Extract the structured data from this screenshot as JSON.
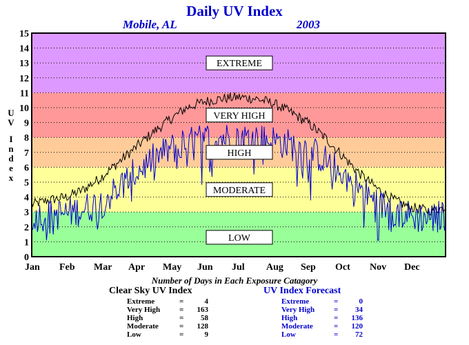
{
  "chart_data": {
    "type": "line",
    "title": "Daily UV Index",
    "subtitle_location": "Mobile, AL",
    "subtitle_year": "2003",
    "ylabel": "UV Index",
    "xlabel": "",
    "ylim": [
      0,
      15
    ],
    "yticks": [
      "0",
      "1",
      "2",
      "3",
      "4",
      "5",
      "6",
      "7",
      "8",
      "9",
      "10",
      "11",
      "12",
      "13",
      "14",
      "15"
    ],
    "xticks": [
      "Jan",
      "Feb",
      "Mar",
      "Apr",
      "May",
      "Jun",
      "Jul",
      "Aug",
      "Sep",
      "Oct",
      "Nov",
      "Dec"
    ],
    "grid": true,
    "bands": [
      {
        "label": "LOW",
        "from": 0,
        "to": 3,
        "color": "#99ff99"
      },
      {
        "label": "MODERATE",
        "from": 3,
        "to": 6,
        "color": "#ffff99"
      },
      {
        "label": "HIGH",
        "from": 6,
        "to": 8,
        "color": "#ffcc99"
      },
      {
        "label": "VERY HIGH",
        "from": 8,
        "to": 11,
        "color": "#ff9999"
      },
      {
        "label": "EXTREME",
        "from": 11,
        "to": 15,
        "color": "#dd99ff"
      }
    ],
    "series": [
      {
        "name": "Clear Sky UV Index",
        "color": "#000000",
        "x_month": [
          0,
          0.5,
          1,
          1.5,
          2,
          2.5,
          3,
          3.5,
          4,
          4.5,
          5,
          5.5,
          6,
          6.5,
          7,
          7.5,
          8,
          8.5,
          9,
          9.5,
          10,
          10.5,
          11,
          11.5,
          12
        ],
        "values": [
          3.5,
          3.8,
          4.0,
          4.5,
          5.3,
          6.3,
          7.3,
          8.3,
          9.2,
          10.0,
          10.4,
          10.6,
          10.7,
          10.6,
          10.3,
          9.7,
          9.0,
          8.0,
          6.8,
          5.6,
          4.6,
          3.8,
          3.3,
          3.1,
          3.3
        ]
      },
      {
        "name": "UV Index Forecast",
        "color": "#0000cc",
        "x_month": [
          0,
          0.5,
          1,
          1.5,
          2,
          2.5,
          3,
          3.5,
          4,
          4.5,
          5,
          5.5,
          6,
          6.5,
          7,
          7.5,
          8,
          8.5,
          9,
          9.5,
          10,
          10.5,
          11,
          11.5,
          12
        ],
        "values": [
          2.7,
          2.8,
          2.9,
          3.2,
          3.6,
          4.6,
          5.6,
          6.5,
          7.2,
          7.6,
          7.9,
          8.0,
          8.0,
          7.9,
          7.8,
          7.5,
          7.2,
          6.5,
          5.6,
          4.6,
          3.6,
          3.1,
          2.7,
          2.6,
          2.8
        ]
      }
    ]
  },
  "caption": "Number of Days in Each Exposure Catagory",
  "summary_clear": {
    "title": "Clear Sky UV Index",
    "rows": [
      {
        "label": "Extreme",
        "eq": "=",
        "value": "4"
      },
      {
        "label": "Very High",
        "eq": "=",
        "value": "163"
      },
      {
        "label": "High",
        "eq": "=",
        "value": "58"
      },
      {
        "label": "Moderate",
        "eq": "=",
        "value": "128"
      },
      {
        "label": "Low",
        "eq": "=",
        "value": "9"
      }
    ]
  },
  "summary_forecast": {
    "title": "UV Index Forecast",
    "rows": [
      {
        "label": "Extreme",
        "eq": "=",
        "value": "0"
      },
      {
        "label": "Very High",
        "eq": "=",
        "value": "34"
      },
      {
        "label": "High",
        "eq": "=",
        "value": "136"
      },
      {
        "label": "Moderate",
        "eq": "=",
        "value": "120"
      },
      {
        "label": "Low",
        "eq": "=",
        "value": "72"
      }
    ]
  }
}
